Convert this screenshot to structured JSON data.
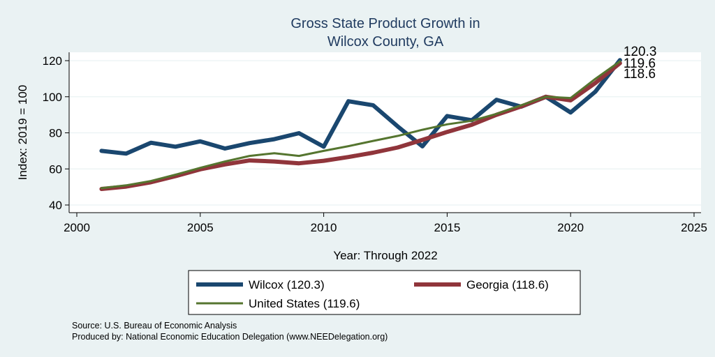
{
  "chart_data": {
    "type": "line",
    "title": [
      "Gross State Product Growth in",
      "Wilcox County, GA"
    ],
    "xlabel": "Year: Through 2022",
    "ylabel": "Index: 2019 = 100",
    "xlim": [
      2000,
      2025
    ],
    "ylim": [
      40,
      120
    ],
    "xticks": [
      2000,
      2005,
      2010,
      2015,
      2020,
      2025
    ],
    "yticks": [
      40,
      60,
      80,
      100,
      120
    ],
    "grid": true,
    "legend_position": "bottom",
    "x": [
      2001,
      2002,
      2003,
      2004,
      2005,
      2006,
      2007,
      2008,
      2009,
      2010,
      2011,
      2012,
      2013,
      2014,
      2015,
      2016,
      2017,
      2018,
      2019,
      2020,
      2021,
      2022
    ],
    "series": [
      {
        "name": "Wilcox",
        "legend_label": "Wilcox  (120.3)",
        "color": "#1a476f",
        "values": [
          70.0,
          68.5,
          74.5,
          72.3,
          75.3,
          71.3,
          74.3,
          76.5,
          79.8,
          72.3,
          97.5,
          95.3,
          83.5,
          72.5,
          89.3,
          87.0,
          98.3,
          94.5,
          100.0,
          91.3,
          102.8,
          120.3
        ],
        "end_label": "120.3"
      },
      {
        "name": "Georgia",
        "legend_label": "Georgia (118.6)",
        "color": "#90353b",
        "values": [
          48.9,
          50.2,
          52.6,
          56.0,
          59.8,
          62.5,
          64.7,
          64.1,
          63.1,
          64.5,
          66.6,
          69.0,
          71.9,
          76.1,
          80.5,
          84.5,
          90.0,
          94.6,
          100.0,
          98.0,
          107.6,
          118.6
        ],
        "end_label": "118.6"
      },
      {
        "name": "United States",
        "legend_label": "United States (119.6)",
        "color": "#55752f",
        "values": [
          49.3,
          50.9,
          53.3,
          56.8,
          60.6,
          64.1,
          67.2,
          68.7,
          67.2,
          70.0,
          72.6,
          75.5,
          78.3,
          81.7,
          84.7,
          86.7,
          90.5,
          95.3,
          100.0,
          99.3,
          109.9,
          119.6
        ],
        "end_label": "119.6"
      }
    ]
  },
  "source": {
    "line1": "Source: U.S. Bureau of Economic Analysis",
    "line2": "Produced by: National Economic Education Delegation (www.NEEDelegation.org)"
  }
}
